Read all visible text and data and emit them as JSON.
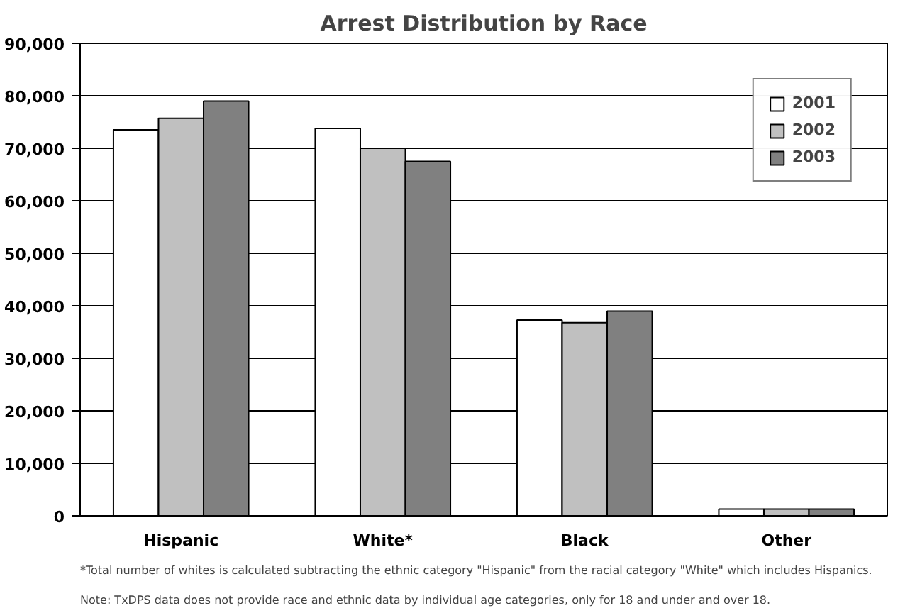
{
  "chart_data": {
    "type": "bar",
    "title": "Arrest Distribution by Race",
    "categories": [
      "Hispanic",
      "White*",
      "Black",
      "Other"
    ],
    "series": [
      {
        "name": "2001",
        "color": "#ffffff",
        "values": [
          73500,
          73800,
          37300,
          1300
        ]
      },
      {
        "name": "2002",
        "color": "#c0c0c0",
        "values": [
          75700,
          70000,
          36800,
          1300
        ]
      },
      {
        "name": "2003",
        "color": "#808080",
        "values": [
          79000,
          67500,
          39000,
          1300
        ]
      }
    ],
    "ylim": [
      0,
      90000
    ],
    "yticks": [
      {
        "value": 0,
        "label": "0"
      },
      {
        "value": 10000,
        "label": "10,000"
      },
      {
        "value": 20000,
        "label": "20,000"
      },
      {
        "value": 30000,
        "label": "30,000"
      },
      {
        "value": 40000,
        "label": "40,000"
      },
      {
        "value": 50000,
        "label": "50,000"
      },
      {
        "value": 60000,
        "label": "60,000"
      },
      {
        "value": 70000,
        "label": "70,000"
      },
      {
        "value": 80000,
        "label": "80,000"
      },
      {
        "value": 90000,
        "label": "90,000"
      }
    ],
    "grid": "y",
    "legend": "top right",
    "annotations": [
      "*Total number of whites is calculated subtracting the ethnic category \"Hispanic\" from the racial category \"White\" which includes Hispanics.",
      "Note:  TxDPS data does not provide race and ethnic data by individual age categories, only for 18 and under and over 18."
    ]
  }
}
